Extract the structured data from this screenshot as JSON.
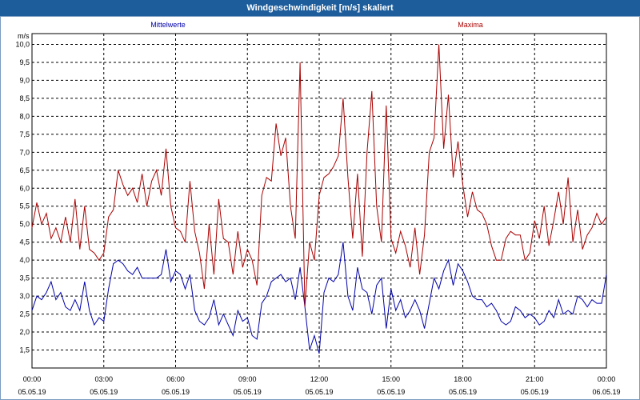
{
  "window": {
    "title": "Windgeschwindigkeit [m/s] skaliert"
  },
  "chart_data": {
    "type": "line",
    "title": "Windgeschwindigkeit [m/s] skaliert",
    "ylabel": "m/s",
    "ylim": [
      1.0,
      10.3
    ],
    "xlim": [
      "05.05.19 00:00",
      "06.05.19 00:00"
    ],
    "grid": true,
    "y_ticks": [
      "1,5",
      "2,0",
      "2,5",
      "3,0",
      "3,5",
      "4,0",
      "4,5",
      "5,0",
      "5,5",
      "6,0",
      "6,5",
      "7,0",
      "7,5",
      "8,0",
      "8,5",
      "9,0",
      "9,5",
      "10,0"
    ],
    "x_ticks": [
      {
        "time": "00:00",
        "date": "05.05.19"
      },
      {
        "time": "03:00",
        "date": "05.05.19"
      },
      {
        "time": "06:00",
        "date": "05.05.19"
      },
      {
        "time": "09:00",
        "date": "05.05.19"
      },
      {
        "time": "12:00",
        "date": "05.05.19"
      },
      {
        "time": "15:00",
        "date": "05.05.19"
      },
      {
        "time": "18:00",
        "date": "05.05.19"
      },
      {
        "time": "21:00",
        "date": "05.05.19"
      },
      {
        "time": "00:00",
        "date": "06.05.19"
      }
    ],
    "series": [
      {
        "name": "Mittelwerte",
        "color": "#0000aa",
        "points": [
          [
            0,
            2.6
          ],
          [
            0.2,
            3.0
          ],
          [
            0.4,
            2.9
          ],
          [
            0.6,
            3.1
          ],
          [
            0.8,
            3.4
          ],
          [
            1.0,
            2.9
          ],
          [
            1.2,
            3.1
          ],
          [
            1.4,
            2.7
          ],
          [
            1.6,
            2.6
          ],
          [
            1.8,
            2.9
          ],
          [
            2.0,
            2.6
          ],
          [
            2.2,
            3.4
          ],
          [
            2.4,
            2.6
          ],
          [
            2.6,
            2.2
          ],
          [
            2.8,
            2.4
          ],
          [
            3.0,
            2.3
          ],
          [
            3.2,
            3.2
          ],
          [
            3.4,
            3.9
          ],
          [
            3.6,
            4.0
          ],
          [
            3.8,
            3.9
          ],
          [
            4.0,
            3.7
          ],
          [
            4.2,
            3.6
          ],
          [
            4.4,
            3.8
          ],
          [
            4.6,
            3.5
          ],
          [
            4.8,
            3.5
          ],
          [
            5.0,
            3.5
          ],
          [
            5.2,
            3.5
          ],
          [
            5.4,
            3.6
          ],
          [
            5.6,
            4.3
          ],
          [
            5.8,
            3.4
          ],
          [
            6.0,
            3.7
          ],
          [
            6.2,
            3.6
          ],
          [
            6.4,
            3.2
          ],
          [
            6.6,
            3.6
          ],
          [
            6.8,
            2.6
          ],
          [
            7.0,
            2.3
          ],
          [
            7.2,
            2.2
          ],
          [
            7.4,
            2.4
          ],
          [
            7.6,
            2.9
          ],
          [
            7.8,
            2.2
          ],
          [
            8.0,
            2.5
          ],
          [
            8.2,
            2.2
          ],
          [
            8.4,
            1.9
          ],
          [
            8.6,
            2.6
          ],
          [
            8.8,
            2.3
          ],
          [
            9.0,
            2.4
          ],
          [
            9.2,
            1.9
          ],
          [
            9.4,
            1.8
          ],
          [
            9.6,
            2.8
          ],
          [
            9.8,
            3.0
          ],
          [
            10.0,
            3.4
          ],
          [
            10.2,
            3.5
          ],
          [
            10.4,
            3.6
          ],
          [
            10.6,
            3.4
          ],
          [
            10.8,
            3.5
          ],
          [
            11.0,
            2.9
          ],
          [
            11.2,
            3.8
          ],
          [
            11.4,
            2.7
          ],
          [
            11.6,
            1.5
          ],
          [
            11.8,
            1.9
          ],
          [
            12.0,
            1.4
          ],
          [
            12.2,
            3.1
          ],
          [
            12.4,
            3.5
          ],
          [
            12.6,
            3.4
          ],
          [
            12.8,
            3.6
          ],
          [
            13.0,
            4.5
          ],
          [
            13.2,
            3.0
          ],
          [
            13.4,
            2.6
          ],
          [
            13.6,
            3.8
          ],
          [
            13.8,
            3.2
          ],
          [
            14.0,
            3.1
          ],
          [
            14.2,
            2.5
          ],
          [
            14.4,
            3.3
          ],
          [
            14.6,
            3.5
          ],
          [
            14.8,
            2.1
          ],
          [
            15.0,
            3.2
          ],
          [
            15.2,
            2.6
          ],
          [
            15.4,
            2.9
          ],
          [
            15.6,
            2.4
          ],
          [
            15.8,
            2.6
          ],
          [
            16.0,
            2.9
          ],
          [
            16.2,
            2.6
          ],
          [
            16.4,
            2.1
          ],
          [
            16.6,
            2.8
          ],
          [
            16.8,
            3.5
          ],
          [
            17.0,
            3.2
          ],
          [
            17.2,
            3.7
          ],
          [
            17.4,
            4.0
          ],
          [
            17.6,
            3.3
          ],
          [
            17.8,
            3.9
          ],
          [
            18.0,
            3.7
          ],
          [
            18.2,
            3.4
          ],
          [
            18.4,
            3.0
          ],
          [
            18.6,
            2.9
          ],
          [
            18.8,
            2.9
          ],
          [
            19.0,
            2.7
          ],
          [
            19.2,
            2.8
          ],
          [
            19.4,
            2.6
          ],
          [
            19.6,
            2.3
          ],
          [
            19.8,
            2.2
          ],
          [
            20.0,
            2.3
          ],
          [
            20.2,
            2.7
          ],
          [
            20.4,
            2.6
          ],
          [
            20.6,
            2.4
          ],
          [
            20.8,
            2.5
          ],
          [
            21.0,
            2.4
          ],
          [
            21.2,
            2.2
          ],
          [
            21.4,
            2.3
          ],
          [
            21.6,
            2.6
          ],
          [
            21.8,
            2.4
          ],
          [
            22.0,
            2.9
          ],
          [
            22.2,
            2.5
          ],
          [
            22.4,
            2.6
          ],
          [
            22.6,
            2.5
          ],
          [
            22.8,
            3.0
          ],
          [
            23.0,
            2.9
          ],
          [
            23.2,
            2.7
          ],
          [
            23.4,
            2.9
          ],
          [
            23.6,
            2.8
          ],
          [
            23.8,
            2.8
          ],
          [
            24.0,
            3.6
          ]
        ]
      },
      {
        "name": "Maxima",
        "color": "#aa0000",
        "points": [
          [
            0,
            4.9
          ],
          [
            0.2,
            5.6
          ],
          [
            0.4,
            5.0
          ],
          [
            0.6,
            5.3
          ],
          [
            0.8,
            4.6
          ],
          [
            1.0,
            4.9
          ],
          [
            1.2,
            4.5
          ],
          [
            1.4,
            5.2
          ],
          [
            1.6,
            4.5
          ],
          [
            1.8,
            5.7
          ],
          [
            2.0,
            4.3
          ],
          [
            2.2,
            5.5
          ],
          [
            2.4,
            4.3
          ],
          [
            2.6,
            4.2
          ],
          [
            2.8,
            4.0
          ],
          [
            3.0,
            4.2
          ],
          [
            3.2,
            5.2
          ],
          [
            3.4,
            5.4
          ],
          [
            3.6,
            6.5
          ],
          [
            3.8,
            6.1
          ],
          [
            4.0,
            5.8
          ],
          [
            4.2,
            6.0
          ],
          [
            4.4,
            5.6
          ],
          [
            4.6,
            6.4
          ],
          [
            4.8,
            5.5
          ],
          [
            5.0,
            6.2
          ],
          [
            5.2,
            6.5
          ],
          [
            5.4,
            5.8
          ],
          [
            5.6,
            7.1
          ],
          [
            5.8,
            5.5
          ],
          [
            6.0,
            4.9
          ],
          [
            6.2,
            4.8
          ],
          [
            6.4,
            4.5
          ],
          [
            6.6,
            6.2
          ],
          [
            6.8,
            4.8
          ],
          [
            7.0,
            4.2
          ],
          [
            7.2,
            3.2
          ],
          [
            7.4,
            5.0
          ],
          [
            7.6,
            3.6
          ],
          [
            7.8,
            5.7
          ],
          [
            8.0,
            4.6
          ],
          [
            8.2,
            4.5
          ],
          [
            8.4,
            3.6
          ],
          [
            8.6,
            4.8
          ],
          [
            8.8,
            3.8
          ],
          [
            9.0,
            4.3
          ],
          [
            9.2,
            4.0
          ],
          [
            9.4,
            3.3
          ],
          [
            9.6,
            5.8
          ],
          [
            9.8,
            6.3
          ],
          [
            10.0,
            6.2
          ],
          [
            10.2,
            7.8
          ],
          [
            10.4,
            6.9
          ],
          [
            10.6,
            7.4
          ],
          [
            10.8,
            5.5
          ],
          [
            11.0,
            4.6
          ],
          [
            11.2,
            9.5
          ],
          [
            11.4,
            2.7
          ],
          [
            11.6,
            4.5
          ],
          [
            11.8,
            4.0
          ],
          [
            12.0,
            5.8
          ],
          [
            12.2,
            6.3
          ],
          [
            12.4,
            6.4
          ],
          [
            12.6,
            6.6
          ],
          [
            12.8,
            6.9
          ],
          [
            13.0,
            8.5
          ],
          [
            13.2,
            6.3
          ],
          [
            13.4,
            4.6
          ],
          [
            13.6,
            6.4
          ],
          [
            13.8,
            4.1
          ],
          [
            14.0,
            7.0
          ],
          [
            14.2,
            8.7
          ],
          [
            14.4,
            5.5
          ],
          [
            14.6,
            4.5
          ],
          [
            14.8,
            8.3
          ],
          [
            15.0,
            4.6
          ],
          [
            15.2,
            4.2
          ],
          [
            15.4,
            4.8
          ],
          [
            15.6,
            4.4
          ],
          [
            15.8,
            3.8
          ],
          [
            16.0,
            4.9
          ],
          [
            16.2,
            3.6
          ],
          [
            16.4,
            4.7
          ],
          [
            16.6,
            7.0
          ],
          [
            16.8,
            7.4
          ],
          [
            17.0,
            10.0
          ],
          [
            17.2,
            7.1
          ],
          [
            17.4,
            8.6
          ],
          [
            17.6,
            6.3
          ],
          [
            17.8,
            7.3
          ],
          [
            18.0,
            6.1
          ],
          [
            18.2,
            5.2
          ],
          [
            18.4,
            5.9
          ],
          [
            18.6,
            5.4
          ],
          [
            18.8,
            5.3
          ],
          [
            19.0,
            5.0
          ],
          [
            19.2,
            4.4
          ],
          [
            19.4,
            4.0
          ],
          [
            19.6,
            4.0
          ],
          [
            19.8,
            4.6
          ],
          [
            20.0,
            4.8
          ],
          [
            20.2,
            4.7
          ],
          [
            20.4,
            4.7
          ],
          [
            20.6,
            4.0
          ],
          [
            20.8,
            4.2
          ],
          [
            21.0,
            5.1
          ],
          [
            21.2,
            4.6
          ],
          [
            21.4,
            5.5
          ],
          [
            21.6,
            4.4
          ],
          [
            21.8,
            5.1
          ],
          [
            22.0,
            5.9
          ],
          [
            22.2,
            5.0
          ],
          [
            22.4,
            6.3
          ],
          [
            22.6,
            4.5
          ],
          [
            22.8,
            5.4
          ],
          [
            23.0,
            4.3
          ],
          [
            23.2,
            4.7
          ],
          [
            23.4,
            4.9
          ],
          [
            23.6,
            5.3
          ],
          [
            23.8,
            5.0
          ],
          [
            24.0,
            5.2
          ]
        ]
      }
    ]
  }
}
